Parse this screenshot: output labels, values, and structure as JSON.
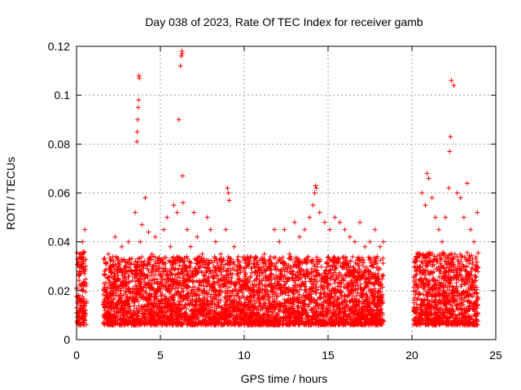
{
  "chart_data": {
    "type": "scatter",
    "title": "Day 038 of 2023, Rate Of TEC Index for receiver gamb",
    "xlabel": "GPS time / hours",
    "ylabel": "ROTI / TECUs",
    "xlim": [
      0,
      25
    ],
    "ylim": [
      0,
      0.12
    ],
    "xticks": [
      0,
      5,
      10,
      15,
      20,
      25
    ],
    "yticks": [
      0,
      0.02,
      0.04,
      0.06,
      0.08,
      0.1,
      0.12
    ],
    "xtick_labels": [
      "0",
      "5",
      "10",
      "15",
      "20",
      "25"
    ],
    "ytick_labels": [
      "0",
      "0.02",
      "0.04",
      "0.06",
      "0.08",
      "0.1",
      "0.12"
    ],
    "grid": true,
    "marker": "+",
    "marker_color": "#ff0000",
    "series": [
      {
        "x": [
          0.1,
          0.2,
          0.3,
          0.35,
          0.45,
          0.5,
          0.55,
          1.7,
          1.9,
          2.1,
          2.3,
          2.5,
          2.7,
          2.9,
          3.1,
          3.3,
          3.5,
          3.6,
          3.62,
          3.65,
          3.68,
          3.7,
          3.72,
          3.75,
          3.8,
          3.9,
          4.1,
          4.3,
          4.5,
          4.7,
          4.9,
          5.2,
          5.4,
          5.6,
          5.8,
          6.0,
          6.1,
          6.2,
          6.25,
          6.28,
          6.3,
          6.32,
          6.35,
          6.6,
          6.8,
          7.0,
          7.2,
          7.5,
          7.8,
          8.0,
          8.3,
          8.6,
          8.9,
          9.0,
          9.05,
          9.1,
          9.4,
          9.7,
          10.0,
          10.3,
          10.6,
          10.9,
          11.2,
          11.5,
          11.8,
          12.1,
          12.4,
          12.7,
          13.0,
          13.3,
          13.6,
          13.9,
          14.1,
          14.2,
          14.25,
          14.3,
          14.5,
          14.8,
          15.1,
          15.4,
          15.7,
          16.0,
          16.3,
          16.6,
          16.9,
          17.2,
          17.5,
          17.8,
          18.1,
          18.3,
          20.2,
          20.4,
          20.6,
          20.8,
          20.9,
          21.0,
          21.2,
          21.4,
          21.6,
          21.8,
          22.0,
          22.2,
          22.25,
          22.3,
          22.35,
          22.5,
          22.7,
          22.9,
          23.1,
          23.3,
          23.5,
          23.7,
          23.9
        ],
        "y": [
          0.018,
          0.035,
          0.022,
          0.04,
          0.028,
          0.045,
          0.012,
          0.02,
          0.035,
          0.03,
          0.042,
          0.025,
          0.038,
          0.03,
          0.04,
          0.028,
          0.052,
          0.081,
          0.085,
          0.09,
          0.095,
          0.098,
          0.108,
          0.107,
          0.04,
          0.047,
          0.058,
          0.044,
          0.035,
          0.042,
          0.03,
          0.045,
          0.05,
          0.038,
          0.055,
          0.052,
          0.09,
          0.112,
          0.116,
          0.118,
          0.117,
          0.067,
          0.056,
          0.045,
          0.038,
          0.052,
          0.042,
          0.035,
          0.05,
          0.045,
          0.04,
          0.035,
          0.045,
          0.062,
          0.06,
          0.057,
          0.038,
          0.03,
          0.028,
          0.032,
          0.03,
          0.028,
          0.035,
          0.03,
          0.045,
          0.04,
          0.045,
          0.035,
          0.048,
          0.042,
          0.045,
          0.05,
          0.055,
          0.06,
          0.063,
          0.062,
          0.052,
          0.048,
          0.045,
          0.05,
          0.048,
          0.045,
          0.042,
          0.04,
          0.048,
          0.038,
          0.04,
          0.045,
          0.038,
          0.04,
          0.02,
          0.035,
          0.06,
          0.055,
          0.068,
          0.066,
          0.058,
          0.05,
          0.045,
          0.04,
          0.05,
          0.062,
          0.077,
          0.083,
          0.106,
          0.104,
          0.06,
          0.058,
          0.05,
          0.064,
          0.045,
          0.04,
          0.052
        ]
      }
    ]
  }
}
